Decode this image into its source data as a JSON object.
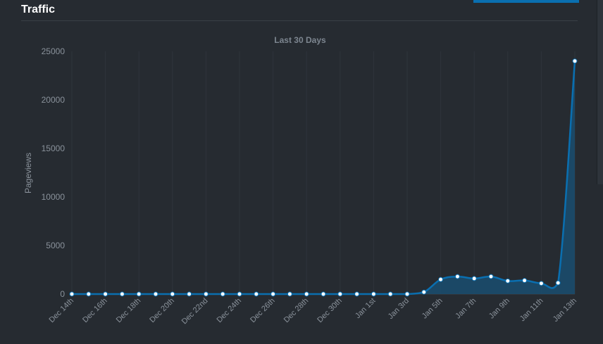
{
  "header": {
    "title": "Traffic"
  },
  "colors": {
    "background": "#262b31",
    "line": "#0a6fb0",
    "area": "#1a4d70",
    "point": "#ffffff",
    "grid": "#2f343b"
  },
  "chart_data": {
    "type": "area",
    "title": "Last 30 Days",
    "xlabel": "",
    "ylabel": "Pageviews",
    "ylim": [
      0,
      25000
    ],
    "yticks": [
      "0",
      "5000",
      "10000",
      "15000",
      "20000",
      "25000"
    ],
    "grid": true,
    "x_labels": [
      "Dec 14th",
      "Dec 16th",
      "Dec 18th",
      "Dec 20th",
      "Dec 22nd",
      "Dec 24th",
      "Dec 26th",
      "Dec 28th",
      "Dec 30th",
      "Jan 1st",
      "Jan 3rd",
      "Jan 5th",
      "Jan 7th",
      "Jan 9th",
      "Jan 11th",
      "Jan 13th"
    ],
    "x": [
      "Dec 14th",
      "Dec 15th",
      "Dec 16th",
      "Dec 17th",
      "Dec 18th",
      "Dec 19th",
      "Dec 20th",
      "Dec 21st",
      "Dec 22nd",
      "Dec 23rd",
      "Dec 24th",
      "Dec 25th",
      "Dec 26th",
      "Dec 27th",
      "Dec 28th",
      "Dec 29th",
      "Dec 30th",
      "Dec 31st",
      "Jan 1st",
      "Jan 2nd",
      "Jan 3rd",
      "Jan 4th",
      "Jan 5th",
      "Jan 6th",
      "Jan 7th",
      "Jan 8th",
      "Jan 9th",
      "Jan 10th",
      "Jan 11th",
      "Jan 12th",
      "Jan 13th"
    ],
    "series": [
      {
        "values": [
          0,
          0,
          0,
          0,
          0,
          0,
          0,
          0,
          0,
          0,
          0,
          0,
          0,
          0,
          0,
          0,
          0,
          0,
          0,
          0,
          0,
          200,
          1500,
          1800,
          1600,
          1800,
          1350,
          1400,
          1100,
          1150,
          24000
        ]
      }
    ]
  }
}
